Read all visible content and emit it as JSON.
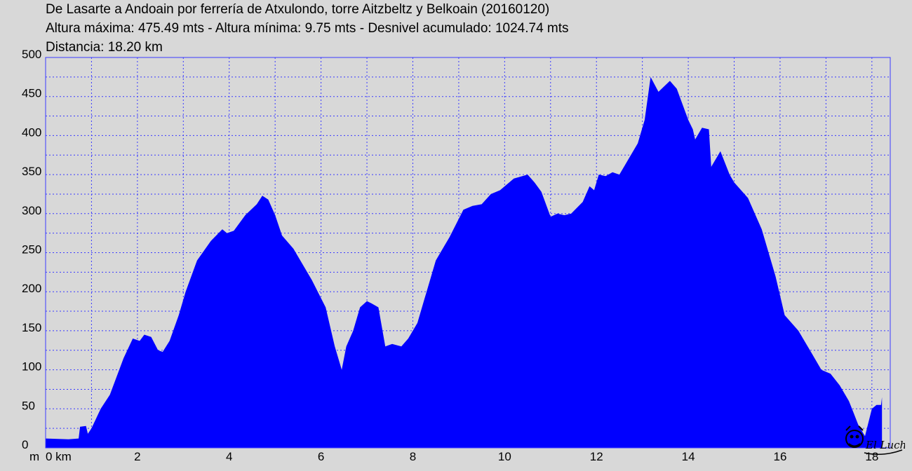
{
  "header": {
    "title": "De Lasarte a Andoain por ferrería de Atxulondo, torre Aitzbeltz y Belkoain (20160120)",
    "stats": "Altura máxima: 475.49 mts - Altura mínima: 9.75 mts - Desnivel acumulado: 1024.74 mts",
    "distance": "Distancia: 18.20 km"
  },
  "colors": {
    "fill": "#0000ff",
    "grid": "#3a3aff",
    "background": "#d8d8d8",
    "axis": "#000000"
  },
  "watermark": {
    "text": "El Lucho",
    "icon": "signature-logo-icon"
  },
  "chart_data": {
    "type": "area",
    "title": "",
    "xlabel": "km",
    "ylabel": "m",
    "xlim": [
      0,
      18.4
    ],
    "ylim": [
      0,
      500
    ],
    "grid": true,
    "x_ticks": [
      0,
      2,
      4,
      6,
      8,
      10,
      12,
      14,
      16,
      18
    ],
    "x_tick_labels": [
      "0 km",
      "2",
      "4",
      "6",
      "8",
      "10",
      "12",
      "14",
      "16",
      "18"
    ],
    "y_ticks": [
      0,
      50,
      100,
      150,
      200,
      250,
      300,
      350,
      400,
      450,
      500
    ],
    "y_unit_label": "m",
    "x": [
      0,
      0.5,
      0.72,
      0.75,
      0.88,
      0.92,
      1.0,
      1.2,
      1.4,
      1.7,
      1.9,
      2.05,
      2.15,
      2.3,
      2.45,
      2.55,
      2.7,
      2.9,
      3.05,
      3.3,
      3.6,
      3.85,
      3.95,
      4.1,
      4.35,
      4.6,
      4.72,
      4.85,
      5.0,
      5.15,
      5.4,
      5.8,
      6.1,
      6.3,
      6.45,
      6.55,
      6.7,
      6.85,
      7.0,
      7.1,
      7.25,
      7.4,
      7.55,
      7.75,
      7.9,
      8.1,
      8.25,
      8.3,
      8.5,
      8.8,
      9.1,
      9.3,
      9.5,
      9.7,
      9.9,
      10.2,
      10.5,
      10.65,
      10.8,
      11.0,
      11.15,
      11.3,
      11.45,
      11.7,
      11.85,
      11.95,
      12.05,
      12.2,
      12.35,
      12.5,
      12.7,
      12.9,
      13.05,
      13.18,
      13.35,
      13.6,
      13.75,
      14.0,
      14.1,
      14.15,
      14.3,
      14.45,
      14.5,
      14.7,
      14.9,
      15.0,
      15.3,
      15.6,
      15.9,
      16.1,
      16.4,
      16.7,
      16.9,
      17.1,
      17.3,
      17.5,
      17.6,
      17.7,
      17.8,
      17.85,
      18.0,
      18.1,
      18.2,
      18.22
    ],
    "values": [
      12,
      11,
      12,
      27,
      28,
      18,
      25,
      50,
      68,
      115,
      140,
      137,
      145,
      142,
      125,
      123,
      137,
      170,
      200,
      240,
      265,
      280,
      275,
      278,
      298,
      312,
      323,
      318,
      298,
      272,
      255,
      215,
      180,
      130,
      100,
      130,
      150,
      180,
      188,
      185,
      180,
      130,
      133,
      130,
      140,
      160,
      190,
      200,
      240,
      270,
      305,
      310,
      312,
      325,
      330,
      345,
      350,
      340,
      328,
      296,
      300,
      298,
      300,
      315,
      335,
      330,
      350,
      348,
      353,
      350,
      370,
      390,
      420,
      475,
      456,
      470,
      460,
      420,
      408,
      395,
      410,
      408,
      360,
      380,
      350,
      340,
      320,
      280,
      220,
      170,
      150,
      120,
      100,
      95,
      80,
      60,
      45,
      30,
      20,
      15,
      50,
      55,
      55,
      65
    ]
  }
}
